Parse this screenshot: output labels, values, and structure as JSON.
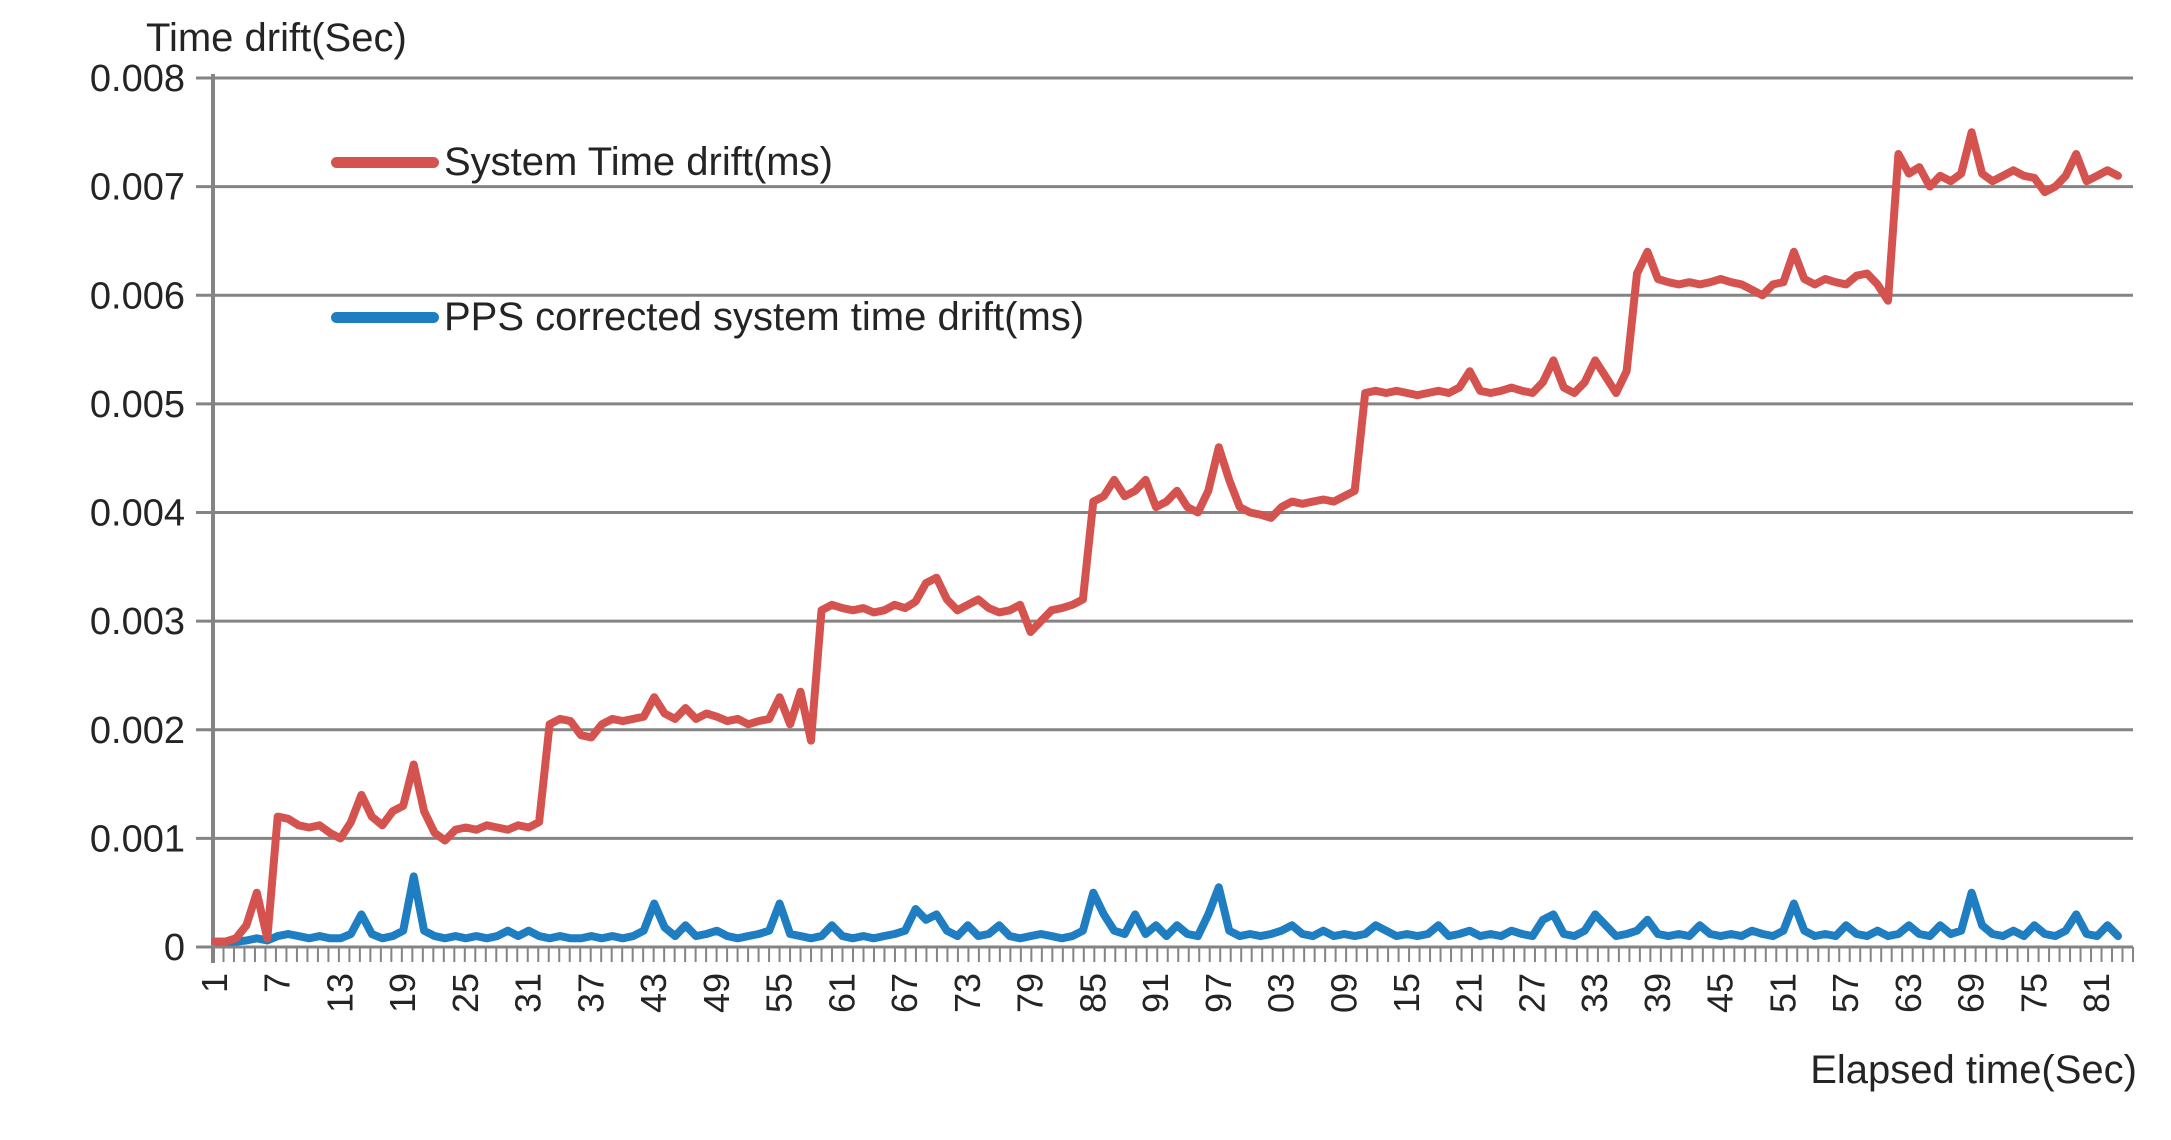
{
  "chart_data": {
    "type": "line",
    "title": "Time drift(Sec)",
    "xlabel": "Elapsed time(Sec)",
    "ylabel": "",
    "ylim": [
      0,
      0.008
    ],
    "y_tick_labels": [
      "0",
      "0.001",
      "0.002",
      "0.003",
      "0.004",
      "0.005",
      "0.006",
      "0.007",
      "0.008"
    ],
    "x_tick_labels": [
      "1",
      "7",
      "13",
      "19",
      "25",
      "31",
      "37",
      "43",
      "49",
      "55",
      "61",
      "67",
      "73",
      "79",
      "85",
      "91",
      "97",
      "03",
      "09",
      "15",
      "21",
      "27",
      "33",
      "39",
      "45",
      "51",
      "57",
      "63",
      "69",
      "75",
      "81"
    ],
    "x_tick_interval": 6,
    "x_count": 183,
    "grid": true,
    "legend_position": "inside-top-left",
    "axis_color": "#848484",
    "text_color": "#242424",
    "series": [
      {
        "name": "System Time drift(ms)",
        "color": "#d5534f",
        "values": [
          5e-05,
          5e-05,
          8e-05,
          0.0002,
          0.0005,
          8e-05,
          0.0012,
          0.00118,
          0.00112,
          0.0011,
          0.00112,
          0.00105,
          0.001,
          0.00115,
          0.0014,
          0.0012,
          0.00112,
          0.00125,
          0.0013,
          0.00168,
          0.00125,
          0.00105,
          0.00098,
          0.00108,
          0.0011,
          0.00108,
          0.00112,
          0.0011,
          0.00108,
          0.00112,
          0.0011,
          0.00115,
          0.00205,
          0.0021,
          0.00208,
          0.00195,
          0.00193,
          0.00205,
          0.0021,
          0.00208,
          0.0021,
          0.00212,
          0.0023,
          0.00215,
          0.0021,
          0.0022,
          0.0021,
          0.00215,
          0.00212,
          0.00208,
          0.0021,
          0.00205,
          0.00208,
          0.0021,
          0.0023,
          0.00205,
          0.00235,
          0.0019,
          0.0031,
          0.00315,
          0.00312,
          0.0031,
          0.00312,
          0.00308,
          0.0031,
          0.00315,
          0.00312,
          0.00318,
          0.00335,
          0.0034,
          0.0032,
          0.0031,
          0.00315,
          0.0032,
          0.00312,
          0.00308,
          0.0031,
          0.00315,
          0.0029,
          0.003,
          0.0031,
          0.00312,
          0.00315,
          0.0032,
          0.0041,
          0.00415,
          0.0043,
          0.00415,
          0.0042,
          0.0043,
          0.00405,
          0.0041,
          0.0042,
          0.00405,
          0.004,
          0.0042,
          0.0046,
          0.0043,
          0.00405,
          0.004,
          0.00398,
          0.00395,
          0.00405,
          0.0041,
          0.00408,
          0.0041,
          0.00412,
          0.0041,
          0.00415,
          0.0042,
          0.0051,
          0.00512,
          0.0051,
          0.00512,
          0.0051,
          0.00508,
          0.0051,
          0.00512,
          0.0051,
          0.00515,
          0.0053,
          0.00512,
          0.0051,
          0.00512,
          0.00515,
          0.00512,
          0.0051,
          0.0052,
          0.0054,
          0.00515,
          0.0051,
          0.0052,
          0.0054,
          0.00525,
          0.0051,
          0.0053,
          0.0062,
          0.0064,
          0.00615,
          0.00612,
          0.0061,
          0.00612,
          0.0061,
          0.00612,
          0.00615,
          0.00612,
          0.0061,
          0.00605,
          0.006,
          0.0061,
          0.00612,
          0.0064,
          0.00615,
          0.0061,
          0.00615,
          0.00612,
          0.0061,
          0.00618,
          0.0062,
          0.0061,
          0.00595,
          0.0073,
          0.00712,
          0.00718,
          0.007,
          0.0071,
          0.00705,
          0.00712,
          0.0075,
          0.00712,
          0.00705,
          0.0071,
          0.00715,
          0.0071,
          0.00708,
          0.00695,
          0.007,
          0.0071,
          0.0073,
          0.00705,
          0.0071,
          0.00715,
          0.0071
        ]
      },
      {
        "name": "PPS corrected system time drift(ms)",
        "color": "#1f7ec1",
        "values": [
          5e-05,
          5e-05,
          5e-05,
          6e-05,
          8e-05,
          6e-05,
          0.0001,
          0.00012,
          0.0001,
          8e-05,
          0.0001,
          8e-05,
          8e-05,
          0.00012,
          0.0003,
          0.00012,
          8e-05,
          0.0001,
          0.00015,
          0.00065,
          0.00015,
          0.0001,
          8e-05,
          0.0001,
          8e-05,
          0.0001,
          8e-05,
          0.0001,
          0.00015,
          0.0001,
          0.00015,
          0.0001,
          8e-05,
          0.0001,
          8e-05,
          8e-05,
          0.0001,
          8e-05,
          0.0001,
          8e-05,
          0.0001,
          0.00015,
          0.0004,
          0.00018,
          0.0001,
          0.0002,
          0.0001,
          0.00012,
          0.00015,
          0.0001,
          8e-05,
          0.0001,
          0.00012,
          0.00015,
          0.0004,
          0.00012,
          0.0001,
          8e-05,
          0.0001,
          0.0002,
          0.0001,
          8e-05,
          0.0001,
          8e-05,
          0.0001,
          0.00012,
          0.00015,
          0.00035,
          0.00025,
          0.0003,
          0.00015,
          0.0001,
          0.0002,
          0.0001,
          0.00012,
          0.0002,
          0.0001,
          8e-05,
          0.0001,
          0.00012,
          0.0001,
          8e-05,
          0.0001,
          0.00015,
          0.0005,
          0.0003,
          0.00015,
          0.00012,
          0.0003,
          0.00012,
          0.0002,
          0.0001,
          0.0002,
          0.00012,
          0.0001,
          0.0003,
          0.00055,
          0.00015,
          0.0001,
          0.00012,
          0.0001,
          0.00012,
          0.00015,
          0.0002,
          0.00012,
          0.0001,
          0.00015,
          0.0001,
          0.00012,
          0.0001,
          0.00012,
          0.0002,
          0.00015,
          0.0001,
          0.00012,
          0.0001,
          0.00012,
          0.0002,
          0.0001,
          0.00012,
          0.00015,
          0.0001,
          0.00012,
          0.0001,
          0.00015,
          0.00012,
          0.0001,
          0.00025,
          0.0003,
          0.00012,
          0.0001,
          0.00015,
          0.0003,
          0.0002,
          0.0001,
          0.00012,
          0.00015,
          0.00025,
          0.00012,
          0.0001,
          0.00012,
          0.0001,
          0.0002,
          0.00012,
          0.0001,
          0.00012,
          0.0001,
          0.00015,
          0.00012,
          0.0001,
          0.00015,
          0.0004,
          0.00015,
          0.0001,
          0.00012,
          0.0001,
          0.0002,
          0.00012,
          0.0001,
          0.00015,
          0.0001,
          0.00012,
          0.0002,
          0.00012,
          0.0001,
          0.0002,
          0.00012,
          0.00015,
          0.0005,
          0.0002,
          0.00012,
          0.0001,
          0.00015,
          0.0001,
          0.0002,
          0.00012,
          0.0001,
          0.00015,
          0.0003,
          0.00012,
          0.0001,
          0.0002,
          0.0001
        ]
      }
    ]
  }
}
